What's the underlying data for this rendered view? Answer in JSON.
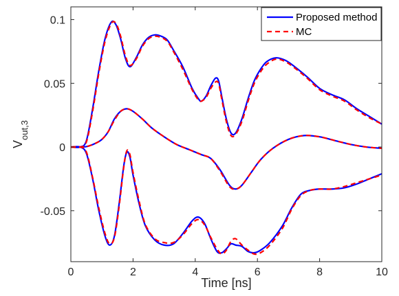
{
  "chart_data": {
    "type": "line",
    "title": "",
    "xlabel": "Time [ns]",
    "ylabel_main": "V",
    "ylabel_sub": "out,3",
    "xlim": [
      0,
      10
    ],
    "ylim": [
      -0.09,
      0.11
    ],
    "x_ticks": [
      0,
      2,
      4,
      6,
      8,
      10
    ],
    "y_ticks": [
      -0.05,
      0,
      0.05,
      0.1
    ],
    "x_tick_labels": [
      "0",
      "2",
      "4",
      "6",
      "8",
      "10"
    ],
    "y_tick_labels": [
      "-0.05",
      "0",
      "0.05",
      "0.1"
    ],
    "grid": false,
    "legend_position": "top-right",
    "series": [
      {
        "name": "Proposed method",
        "color": "#0000ff",
        "style": "solid",
        "curves": [
          [
            [
              0,
              0
            ],
            [
              0.3,
              0
            ],
            [
              0.5,
              0.005
            ],
            [
              0.7,
              0.03
            ],
            [
              0.9,
              0.06
            ],
            [
              1.1,
              0.085
            ],
            [
              1.3,
              0.098
            ],
            [
              1.45,
              0.096
            ],
            [
              1.6,
              0.085
            ],
            [
              1.75,
              0.07
            ],
            [
              1.9,
              0.063
            ],
            [
              2.1,
              0.07
            ],
            [
              2.3,
              0.08
            ],
            [
              2.5,
              0.086
            ],
            [
              2.7,
              0.088
            ],
            [
              2.9,
              0.087
            ],
            [
              3.1,
              0.084
            ],
            [
              3.3,
              0.076
            ],
            [
              3.6,
              0.063
            ],
            [
              3.9,
              0.046
            ],
            [
              4.1,
              0.038
            ],
            [
              4.2,
              0.036
            ],
            [
              4.35,
              0.04
            ],
            [
              4.5,
              0.048
            ],
            [
              4.65,
              0.054
            ],
            [
              4.75,
              0.052
            ],
            [
              4.85,
              0.04
            ],
            [
              5.0,
              0.022
            ],
            [
              5.15,
              0.011
            ],
            [
              5.3,
              0.011
            ],
            [
              5.5,
              0.022
            ],
            [
              5.7,
              0.038
            ],
            [
              5.9,
              0.052
            ],
            [
              6.1,
              0.061
            ],
            [
              6.3,
              0.067
            ],
            [
              6.6,
              0.07
            ],
            [
              6.9,
              0.068
            ],
            [
              7.2,
              0.063
            ],
            [
              7.6,
              0.055
            ],
            [
              8.0,
              0.046
            ],
            [
              8.4,
              0.041
            ],
            [
              8.8,
              0.037
            ],
            [
              9.2,
              0.03
            ],
            [
              9.6,
              0.024
            ],
            [
              10,
              0.018
            ]
          ],
          [
            [
              0,
              0
            ],
            [
              0.4,
              0
            ],
            [
              0.6,
              0.001
            ],
            [
              0.8,
              0.003
            ],
            [
              1.0,
              0.006
            ],
            [
              1.2,
              0.012
            ],
            [
              1.4,
              0.022
            ],
            [
              1.6,
              0.028
            ],
            [
              1.8,
              0.03
            ],
            [
              2.0,
              0.028
            ],
            [
              2.3,
              0.022
            ],
            [
              2.6,
              0.015
            ],
            [
              3.0,
              0.008
            ],
            [
              3.4,
              0.002
            ],
            [
              3.8,
              -0.002
            ],
            [
              4.2,
              -0.006
            ],
            [
              4.5,
              -0.009
            ],
            [
              4.8,
              -0.018
            ],
            [
              5.1,
              -0.03
            ],
            [
              5.3,
              -0.033
            ],
            [
              5.5,
              -0.03
            ],
            [
              5.8,
              -0.02
            ],
            [
              6.1,
              -0.01
            ],
            [
              6.5,
              -0.001
            ],
            [
              7.0,
              0.006
            ],
            [
              7.5,
              0.009
            ],
            [
              8.0,
              0.008
            ],
            [
              8.5,
              0.005
            ],
            [
              9.0,
              0.002
            ],
            [
              9.5,
              0
            ],
            [
              10,
              -0.001
            ]
          ],
          [
            [
              0,
              0
            ],
            [
              0.3,
              0
            ],
            [
              0.5,
              -0.005
            ],
            [
              0.7,
              -0.025
            ],
            [
              0.9,
              -0.05
            ],
            [
              1.1,
              -0.07
            ],
            [
              1.25,
              -0.077
            ],
            [
              1.4,
              -0.07
            ],
            [
              1.55,
              -0.045
            ],
            [
              1.7,
              -0.015
            ],
            [
              1.8,
              -0.004
            ],
            [
              1.9,
              -0.008
            ],
            [
              2.0,
              -0.022
            ],
            [
              2.2,
              -0.045
            ],
            [
              2.4,
              -0.062
            ],
            [
              2.7,
              -0.073
            ],
            [
              3.0,
              -0.077
            ],
            [
              3.3,
              -0.076
            ],
            [
              3.6,
              -0.068
            ],
            [
              3.9,
              -0.058
            ],
            [
              4.1,
              -0.055
            ],
            [
              4.3,
              -0.06
            ],
            [
              4.5,
              -0.072
            ],
            [
              4.7,
              -0.082
            ],
            [
              4.85,
              -0.083
            ],
            [
              5.0,
              -0.08
            ],
            [
              5.15,
              -0.076
            ],
            [
              5.3,
              -0.077
            ],
            [
              5.5,
              -0.078
            ],
            [
              5.7,
              -0.082
            ],
            [
              5.9,
              -0.083
            ],
            [
              6.1,
              -0.081
            ],
            [
              6.4,
              -0.075
            ],
            [
              6.8,
              -0.062
            ],
            [
              7.1,
              -0.048
            ],
            [
              7.4,
              -0.037
            ],
            [
              7.7,
              -0.034
            ],
            [
              8.0,
              -0.033
            ],
            [
              8.4,
              -0.033
            ],
            [
              8.8,
              -0.032
            ],
            [
              9.2,
              -0.029
            ],
            [
              9.6,
              -0.025
            ],
            [
              10,
              -0.021
            ]
          ]
        ]
      },
      {
        "name": "MC",
        "color": "#ff0000",
        "style": "dashed",
        "curves": [
          [
            [
              0,
              0
            ],
            [
              0.3,
              0
            ],
            [
              0.5,
              0.004
            ],
            [
              0.7,
              0.028
            ],
            [
              0.9,
              0.058
            ],
            [
              1.1,
              0.083
            ],
            [
              1.3,
              0.097
            ],
            [
              1.45,
              0.097
            ],
            [
              1.6,
              0.087
            ],
            [
              1.75,
              0.072
            ],
            [
              1.9,
              0.064
            ],
            [
              2.1,
              0.069
            ],
            [
              2.3,
              0.079
            ],
            [
              2.5,
              0.085
            ],
            [
              2.7,
              0.087
            ],
            [
              2.9,
              0.086
            ],
            [
              3.1,
              0.083
            ],
            [
              3.3,
              0.075
            ],
            [
              3.6,
              0.061
            ],
            [
              3.9,
              0.045
            ],
            [
              4.1,
              0.037
            ],
            [
              4.2,
              0.036
            ],
            [
              4.35,
              0.039
            ],
            [
              4.5,
              0.046
            ],
            [
              4.65,
              0.051
            ],
            [
              4.75,
              0.05
            ],
            [
              4.85,
              0.038
            ],
            [
              5.0,
              0.02
            ],
            [
              5.15,
              0.009
            ],
            [
              5.3,
              0.01
            ],
            [
              5.5,
              0.02
            ],
            [
              5.7,
              0.036
            ],
            [
              5.9,
              0.05
            ],
            [
              6.1,
              0.059
            ],
            [
              6.3,
              0.065
            ],
            [
              6.6,
              0.069
            ],
            [
              6.9,
              0.067
            ],
            [
              7.2,
              0.062
            ],
            [
              7.6,
              0.054
            ],
            [
              8.0,
              0.045
            ],
            [
              8.4,
              0.04
            ],
            [
              8.8,
              0.036
            ],
            [
              9.2,
              0.029
            ],
            [
              9.6,
              0.023
            ],
            [
              10,
              0.018
            ]
          ],
          [
            [
              0,
              0
            ],
            [
              0.4,
              0
            ],
            [
              0.6,
              0.001
            ],
            [
              0.8,
              0.003
            ],
            [
              1.0,
              0.006
            ],
            [
              1.2,
              0.012
            ],
            [
              1.4,
              0.021
            ],
            [
              1.6,
              0.028
            ],
            [
              1.8,
              0.03
            ],
            [
              2.0,
              0.028
            ],
            [
              2.3,
              0.022
            ],
            [
              2.6,
              0.015
            ],
            [
              3.0,
              0.008
            ],
            [
              3.4,
              0.002
            ],
            [
              3.8,
              -0.002
            ],
            [
              4.2,
              -0.006
            ],
            [
              4.5,
              -0.009
            ],
            [
              4.8,
              -0.019
            ],
            [
              5.1,
              -0.031
            ],
            [
              5.3,
              -0.033
            ],
            [
              5.5,
              -0.03
            ],
            [
              5.8,
              -0.02
            ],
            [
              6.1,
              -0.01
            ],
            [
              6.5,
              -0.001
            ],
            [
              7.0,
              0.006
            ],
            [
              7.5,
              0.009
            ],
            [
              8.0,
              0.008
            ],
            [
              8.5,
              0.005
            ],
            [
              9.0,
              0.002
            ],
            [
              9.5,
              0
            ],
            [
              10,
              -0.001
            ]
          ],
          [
            [
              0,
              0
            ],
            [
              0.3,
              0
            ],
            [
              0.5,
              -0.004
            ],
            [
              0.7,
              -0.024
            ],
            [
              0.9,
              -0.048
            ],
            [
              1.1,
              -0.068
            ],
            [
              1.25,
              -0.076
            ],
            [
              1.4,
              -0.071
            ],
            [
              1.55,
              -0.047
            ],
            [
              1.7,
              -0.016
            ],
            [
              1.8,
              -0.003
            ],
            [
              1.9,
              -0.006
            ],
            [
              2.0,
              -0.02
            ],
            [
              2.2,
              -0.043
            ],
            [
              2.4,
              -0.061
            ],
            [
              2.7,
              -0.072
            ],
            [
              3.0,
              -0.075
            ],
            [
              3.3,
              -0.075
            ],
            [
              3.6,
              -0.069
            ],
            [
              3.9,
              -0.06
            ],
            [
              4.1,
              -0.057
            ],
            [
              4.3,
              -0.061
            ],
            [
              4.5,
              -0.071
            ],
            [
              4.7,
              -0.08
            ],
            [
              4.85,
              -0.084
            ],
            [
              5.0,
              -0.081
            ],
            [
              5.15,
              -0.074
            ],
            [
              5.3,
              -0.072
            ],
            [
              5.5,
              -0.077
            ],
            [
              5.7,
              -0.081
            ],
            [
              5.9,
              -0.084
            ],
            [
              6.1,
              -0.083
            ],
            [
              6.4,
              -0.077
            ],
            [
              6.8,
              -0.064
            ],
            [
              7.1,
              -0.049
            ],
            [
              7.4,
              -0.038
            ],
            [
              7.7,
              -0.034
            ],
            [
              8.0,
              -0.033
            ],
            [
              8.4,
              -0.033
            ],
            [
              8.8,
              -0.031
            ],
            [
              9.2,
              -0.028
            ],
            [
              9.6,
              -0.025
            ],
            [
              10,
              -0.022
            ]
          ]
        ]
      }
    ]
  }
}
